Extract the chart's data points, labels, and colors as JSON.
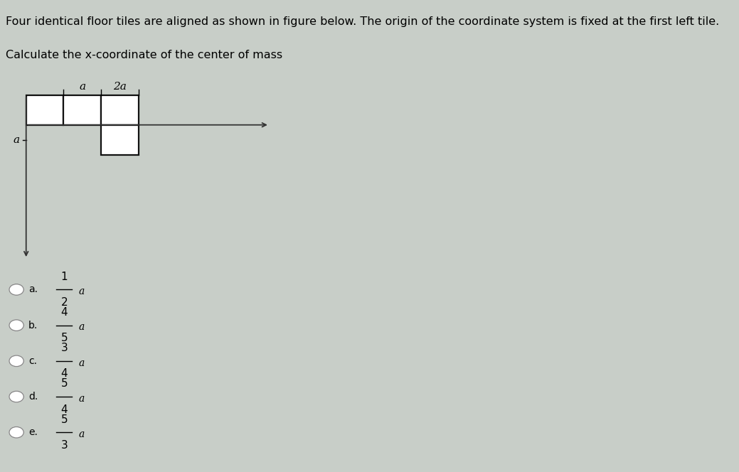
{
  "bg_color_top": "#c8d8e4",
  "bg_color_main": "#c8cec8",
  "title_line1": "Four identical floor tiles are aligned as shown in figure below. The origin of the coordinate system is fixed at the first left tile.",
  "title_line2": "Calculate the x-coordinate of the center of mass",
  "title_fontsize": 11.5,
  "answer_options": [
    {
      "label": "a.",
      "num": "1",
      "den": "2",
      "selected": false
    },
    {
      "label": "b.",
      "num": "4",
      "den": "5",
      "selected": false
    },
    {
      "label": "c.",
      "num": "3",
      "den": "4",
      "selected": false
    },
    {
      "label": "d.",
      "num": "5",
      "den": "4",
      "selected": false
    },
    {
      "label": "e.",
      "num": "5",
      "den": "3",
      "selected": false
    }
  ],
  "tile_edge_color": "#111111",
  "tile_face_color": "white",
  "axis_color": "#333333",
  "label_fontsize": 10,
  "radio_color": "#cccccc",
  "radio_edge_color": "#888888"
}
